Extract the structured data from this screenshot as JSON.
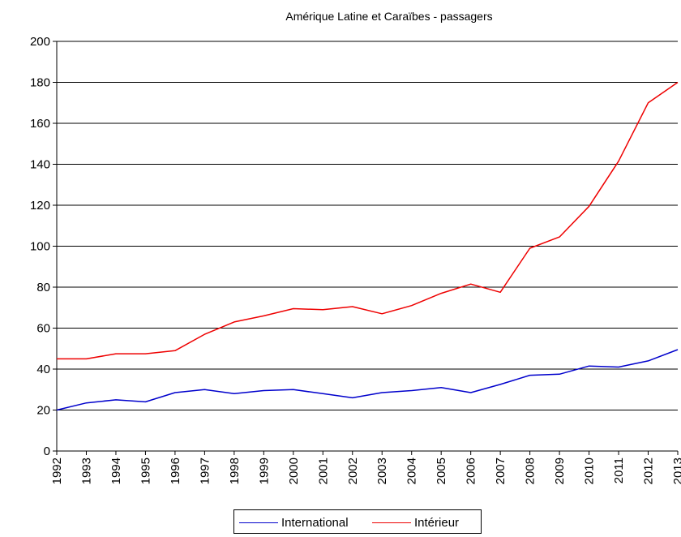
{
  "chart_data": {
    "type": "line",
    "title": "Amérique Latine et Caraïbes - passagers",
    "xlabel": "",
    "ylabel": "",
    "ylim": [
      0,
      200
    ],
    "yticks": [
      0,
      20,
      40,
      60,
      80,
      100,
      120,
      140,
      160,
      180,
      200
    ],
    "grid": true,
    "legend_position": "bottom",
    "categories": [
      "1992",
      "1993",
      "1994",
      "1995",
      "1996",
      "1997",
      "1998",
      "1999",
      "2000",
      "2001",
      "2002",
      "2003",
      "2004",
      "2005",
      "2006",
      "2007",
      "2008",
      "2009",
      "2010",
      "2011",
      "2012",
      "2013"
    ],
    "series": [
      {
        "name": "International",
        "color": "#0000cc",
        "values": [
          20,
          23.5,
          25,
          24,
          28.5,
          30,
          28,
          29.5,
          30,
          28,
          26,
          28.5,
          29.5,
          31,
          28.5,
          32.5,
          37,
          37.5,
          41.5,
          41,
          44,
          49.5
        ]
      },
      {
        "name": "Intérieur",
        "color": "#ee0000",
        "values": [
          45,
          45,
          47.5,
          47.5,
          49,
          57,
          63,
          66,
          69.5,
          69,
          70.5,
          67,
          71,
          77,
          81.5,
          77.5,
          99,
          104.5,
          119.5,
          141.5,
          170,
          180
        ]
      }
    ]
  }
}
